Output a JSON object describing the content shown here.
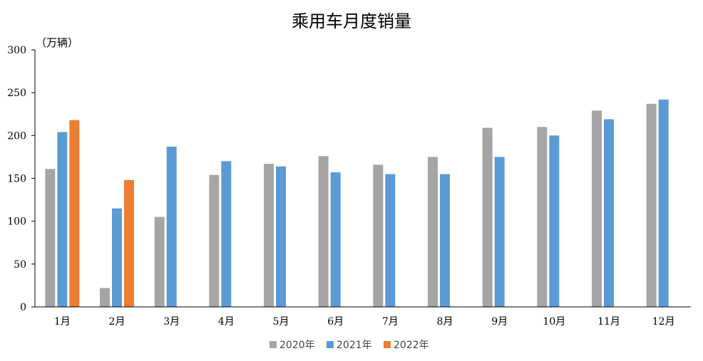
{
  "chart_data": {
    "type": "bar",
    "title": "乘用车月度销量",
    "unit_label": "（万辆）",
    "categories": [
      "1月",
      "2月",
      "3月",
      "4月",
      "5月",
      "6月",
      "7月",
      "8月",
      "9月",
      "10月",
      "11月",
      "12月"
    ],
    "ylim": [
      0,
      300
    ],
    "yticks": [
      0,
      50,
      100,
      150,
      200,
      250,
      300
    ],
    "grid": false,
    "legend_position": "bottom",
    "series": [
      {
        "name": "2020年",
        "color": "#a5a5a5",
        "values": [
          161,
          22,
          105,
          154,
          167,
          176,
          166,
          175,
          209,
          210,
          229,
          237
        ]
      },
      {
        "name": "2021年",
        "color": "#5b9bd5",
        "values": [
          204,
          115,
          187,
          170,
          164,
          157,
          155,
          155,
          175,
          200,
          219,
          242
        ]
      },
      {
        "name": "2022年",
        "color": "#ed7d31",
        "values": [
          218,
          148,
          null,
          null,
          null,
          null,
          null,
          null,
          null,
          null,
          null,
          null
        ]
      }
    ]
  }
}
